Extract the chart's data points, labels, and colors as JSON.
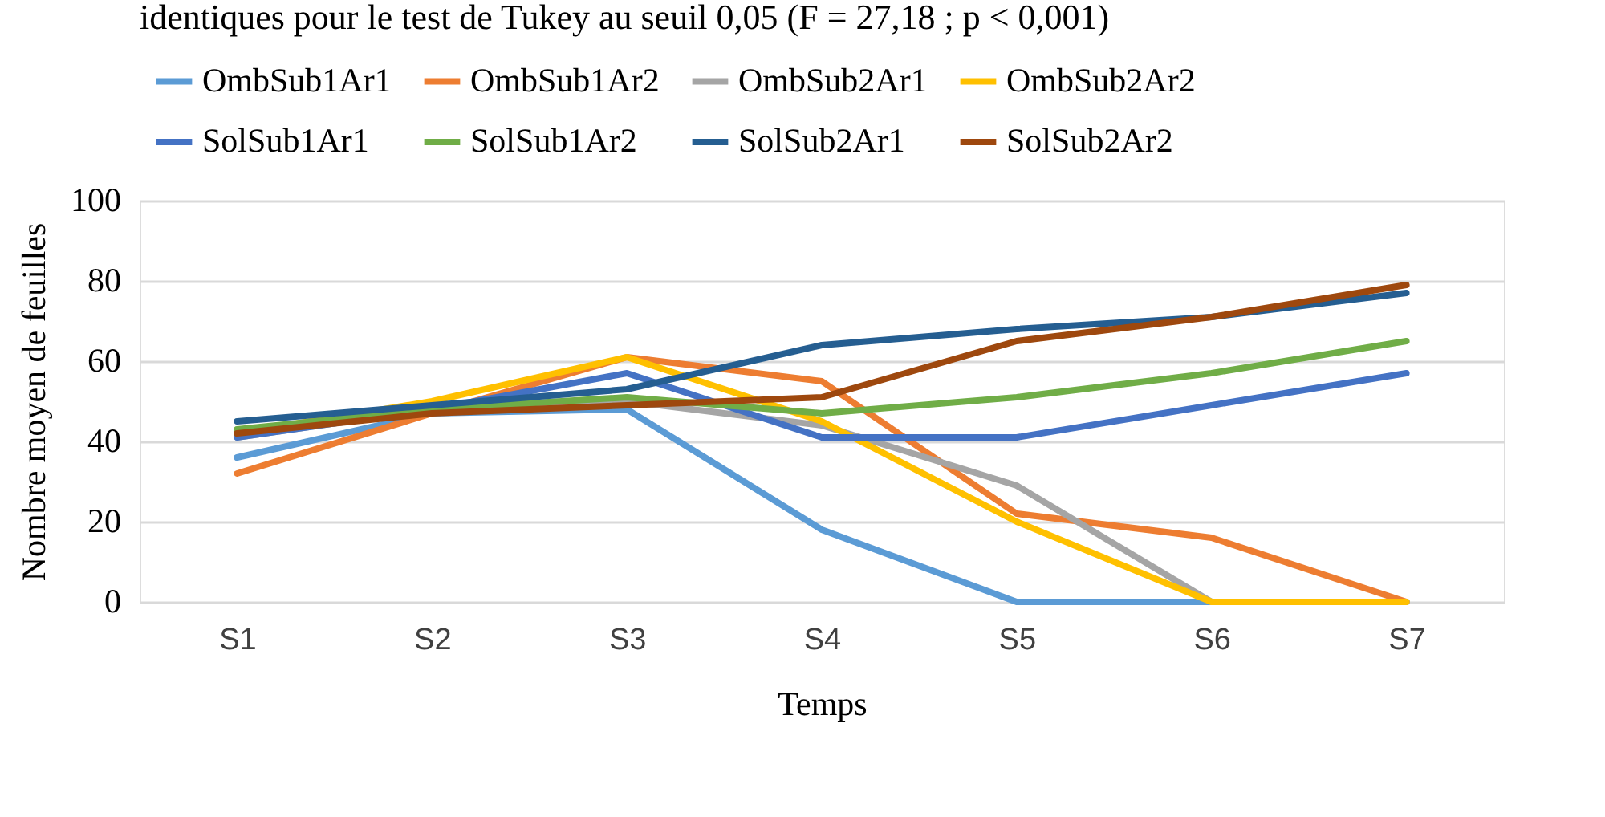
{
  "chart_data": {
    "type": "line",
    "title": "identiques pour le test de Tukey au seuil 0,05 (F = 27,18 ; p < 0,001)",
    "xlabel": "Temps",
    "ylabel": "Nombre moyen de feuilles",
    "categories": [
      "S1",
      "S2",
      "S3",
      "S4",
      "S5",
      "S6",
      "S7"
    ],
    "series": [
      {
        "name": "OmbSub1Ar1",
        "color": "#5b9bd5",
        "values": [
          36,
          47,
          48,
          18,
          0,
          0,
          0
        ]
      },
      {
        "name": "OmbSub1Ar2",
        "color": "#ed7d31",
        "values": [
          32,
          47,
          61,
          55,
          22,
          16,
          0
        ]
      },
      {
        "name": "OmbSub2Ar1",
        "color": "#a5a5a5",
        "values": [
          41,
          48,
          50,
          44,
          29,
          0,
          0
        ]
      },
      {
        "name": "OmbSub2Ar2",
        "color": "#ffc000",
        "values": [
          42,
          50,
          61,
          45,
          20,
          0,
          0
        ]
      },
      {
        "name": "SolSub1Ar1",
        "color": "#4472c4",
        "values": [
          41,
          48,
          57,
          41,
          41,
          49,
          57
        ]
      },
      {
        "name": "SolSub1Ar2",
        "color": "#70ad47",
        "values": [
          43,
          48,
          51,
          47,
          51,
          57,
          65
        ]
      },
      {
        "name": "SolSub2Ar1",
        "color": "#255e91",
        "values": [
          45,
          49,
          53,
          64,
          68,
          71,
          77
        ]
      },
      {
        "name": "SolSub2Ar2",
        "color": "#9e480e",
        "values": [
          42,
          47,
          49,
          51,
          65,
          71,
          79
        ]
      }
    ],
    "ylim": [
      0,
      100
    ],
    "yticks": [
      0,
      20,
      40,
      60,
      80,
      100
    ],
    "grid": "y",
    "legend": "top",
    "marker": "none",
    "line_style": "solid"
  }
}
